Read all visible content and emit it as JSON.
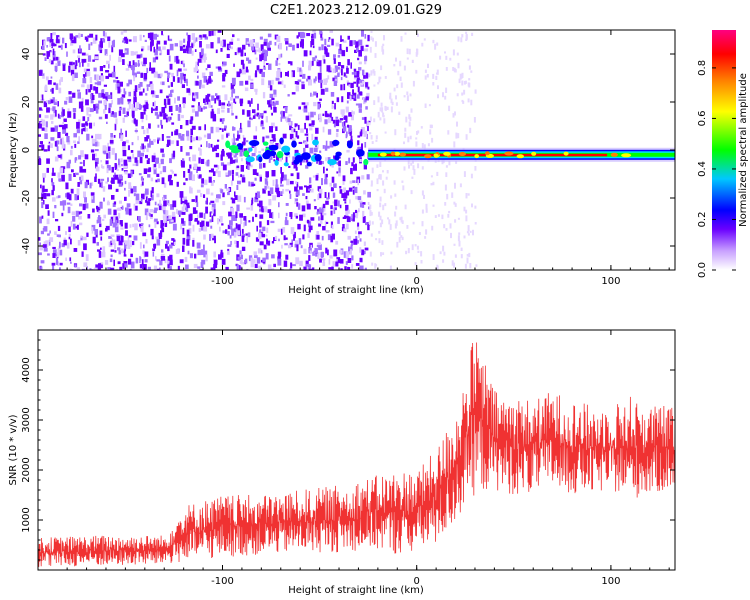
{
  "title": "C2E1.2023.212.09.01.G29",
  "chart_data": [
    {
      "type": "heatmap",
      "xlabel": "Height of straight line (km)",
      "ylabel": "Frequency (Hz)",
      "xlim": [
        -195,
        133
      ],
      "ylim": [
        -50,
        50
      ],
      "x_ticks": [
        -100,
        0,
        100
      ],
      "y_ticks": [
        -40,
        -20,
        0,
        20,
        40
      ],
      "colorbar": {
        "label": "Normalized spectral amplitude",
        "range": [
          0.0,
          0.95
        ],
        "ticks": [
          0.0,
          0.2,
          0.4,
          0.6,
          0.8
        ],
        "colors": [
          "#ffffff",
          "#c8a0ff",
          "#6a00ff",
          "#0000ff",
          "#00c8ff",
          "#00ff00",
          "#ffff00",
          "#ff8000",
          "#ff0000",
          "#ff0080"
        ]
      },
      "regions": [
        {
          "x_range": [
            -195,
            -25
          ],
          "description_level": "broadband noise",
          "amplitude": 0.15
        },
        {
          "x_range": [
            -25,
            133
          ],
          "signal_frequency_hz": -2,
          "amplitude": 0.9
        }
      ]
    },
    {
      "type": "line",
      "xlabel": "Height of straight line (km)",
      "ylabel": "SNR (10 * v/v)",
      "xlim": [
        -195,
        133
      ],
      "ylim": [
        0,
        4800
      ],
      "x_ticks": [
        -100,
        0,
        100
      ],
      "y_ticks": [
        1000,
        2000,
        3000,
        4000
      ],
      "color": "#f03232",
      "envelope": {
        "x": [
          -195,
          -160,
          -130,
          -120,
          -100,
          -80,
          -60,
          -40,
          -20,
          -10,
          0,
          10,
          20,
          25,
          30,
          40,
          50,
          60,
          70,
          80,
          90,
          100,
          110,
          120,
          133
        ],
        "low": [
          50,
          80,
          100,
          150,
          250,
          300,
          350,
          350,
          400,
          300,
          350,
          500,
          900,
          1300,
          1500,
          1600,
          1500,
          1500,
          1600,
          1500,
          1500,
          1600,
          1400,
          1500,
          1600
        ],
        "high": [
          650,
          700,
          700,
          1300,
          1500,
          1500,
          1600,
          1700,
          1900,
          2000,
          2000,
          2400,
          3200,
          3900,
          4800,
          3600,
          3500,
          3400,
          3600,
          3400,
          3300,
          3300,
          3500,
          3300,
          3300
        ]
      }
    }
  ]
}
